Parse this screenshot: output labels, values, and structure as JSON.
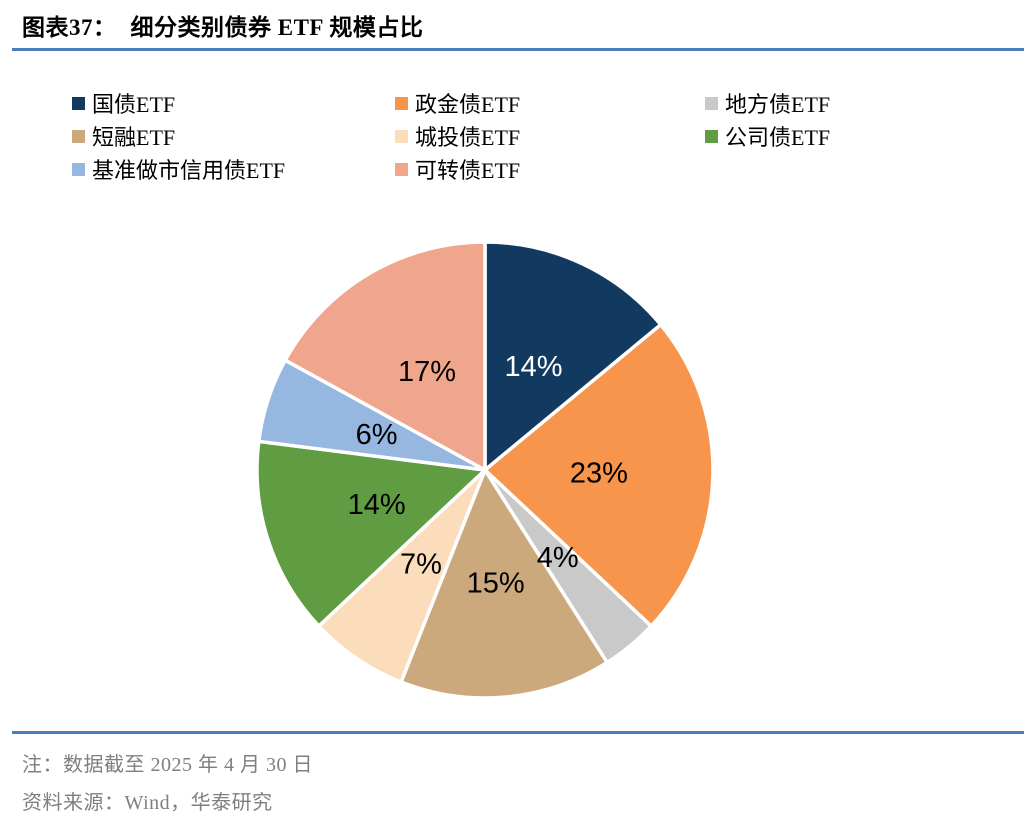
{
  "figure": {
    "label": "图表37：",
    "title": "细分类别债券 ETF 规模占比"
  },
  "footer": {
    "note": "注：数据截至 2025 年 4 月 30 日",
    "source": "资料来源：Wind，华泰研究"
  },
  "colors": {
    "rule_blue": "#4a7ebb",
    "footer_text": "#7f7f7f",
    "slice_border": "#ffffff"
  },
  "chart_data": {
    "type": "pie",
    "title": "细分类别债券 ETF 规模占比",
    "legend_position": "top",
    "legend_columns": 3,
    "start_angle_deg": 0,
    "direction": "clockwise",
    "total": 100,
    "series": [
      {
        "name": "国债ETF",
        "value": 14,
        "label": "14%",
        "color": "#12395f",
        "label_color": "#ffffff"
      },
      {
        "name": "政金债ETF",
        "value": 23,
        "label": "23%",
        "color": "#f6954b",
        "label_color": "#000000"
      },
      {
        "name": "地方债ETF",
        "value": 4,
        "label": "4%",
        "color": "#c9c9c9",
        "label_color": "#000000"
      },
      {
        "name": "短融ETF",
        "value": 15,
        "label": "15%",
        "color": "#cba97d",
        "label_color": "#000000"
      },
      {
        "name": "城投债ETF",
        "value": 7,
        "label": "7%",
        "color": "#fbdcbb",
        "label_color": "#000000"
      },
      {
        "name": "公司债ETF",
        "value": 14,
        "label": "14%",
        "color": "#5f9c42",
        "label_color": "#000000"
      },
      {
        "name": "基准做市信用债ETF",
        "value": 6,
        "label": "6%",
        "color": "#95b7e0",
        "label_color": "#000000"
      },
      {
        "name": "可转债ETF",
        "value": 17,
        "label": "17%",
        "color": "#f0a68c",
        "label_color": "#000000"
      }
    ]
  }
}
